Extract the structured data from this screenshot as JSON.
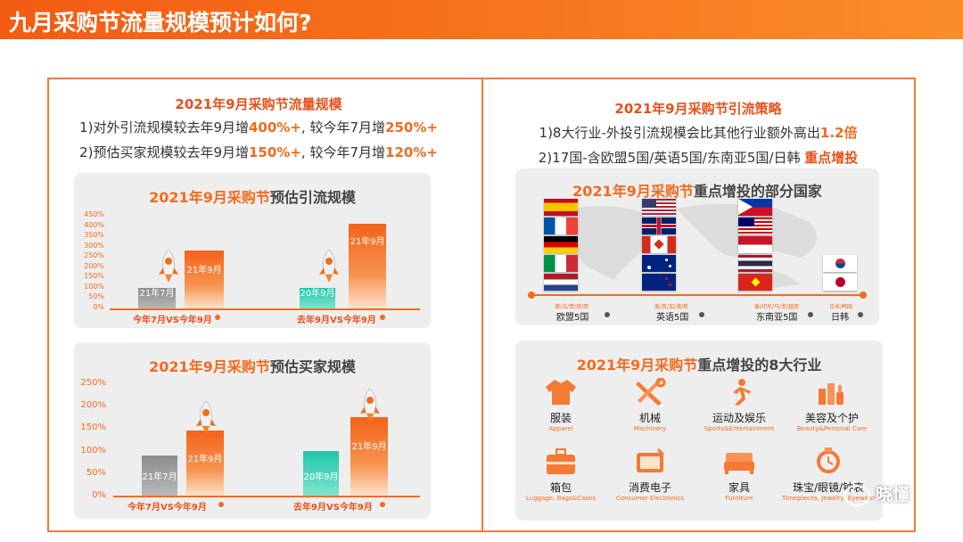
{
  "header": {
    "title": "九月采购节流量规模预计如何?"
  },
  "left": {
    "heading": "2021年9月采购节流量规模",
    "line1": {
      "a": "1)对外引流规模较去年9月增",
      "b": "400%+",
      "c": ", 较今年7月增",
      "d": "250%+"
    },
    "line2": {
      "a": "2)预估买家规模较去年9月增",
      "b": "150%+",
      "c": ", 较今年7月增",
      "d": "120%+"
    },
    "chart1": {
      "title_orange": "2021年9月采购节",
      "title_gray": "预估引流规模",
      "ticks": [
        "450%",
        "400%",
        "350%",
        "300%",
        "250%",
        "200%",
        "150%",
        "100%",
        "50%",
        "0%"
      ],
      "bar_labels": [
        "21年7月",
        "21年9月",
        "20年9月",
        "21年9月"
      ],
      "categories": [
        "今年7月VS今年9月",
        "去年9月VS今年9月"
      ]
    },
    "chart2": {
      "title_orange": "2021年9月采购节",
      "title_gray": "预估买家规模",
      "ticks": [
        "250%",
        "200%",
        "150%",
        "100%",
        "50%",
        "0%"
      ],
      "bar_labels": [
        "21年7月",
        "21年9月",
        "20年9月",
        "21年9月"
      ],
      "categories": [
        "今年7月VS今年9月",
        "去年9月VS今年9月"
      ]
    }
  },
  "chart_data": [
    {
      "type": "bar",
      "title": "2021年9月采购节预估引流规模",
      "ylim": [
        0,
        450
      ],
      "ticks": [
        "0%",
        "50%",
        "100%",
        "150%",
        "200%",
        "250%",
        "300%",
        "350%",
        "400%",
        "450%"
      ],
      "groups": [
        {
          "category": "今年7月VS今年9月",
          "bars": [
            {
              "label": "21年7月",
              "value": 100
            },
            {
              "label": "21年9月",
              "value": 280
            }
          ]
        },
        {
          "category": "去年9月VS今年9月",
          "bars": [
            {
              "label": "20年9月",
              "value": 100
            },
            {
              "label": "21年9月",
              "value": 410
            }
          ]
        }
      ]
    },
    {
      "type": "bar",
      "title": "2021年9月采购节预估买家规模",
      "ylim": [
        0,
        250
      ],
      "ticks": [
        "0%",
        "50%",
        "100%",
        "150%",
        "200%",
        "250%"
      ],
      "groups": [
        {
          "category": "今年7月VS今年9月",
          "bars": [
            {
              "label": "21年7月",
              "value": 90
            },
            {
              "label": "21年9月",
              "value": 145
            }
          ]
        },
        {
          "category": "去年9月VS今年9月",
          "bars": [
            {
              "label": "20年9月",
              "value": 100
            },
            {
              "label": "21年9月",
              "value": 175
            }
          ]
        }
      ]
    }
  ],
  "right": {
    "heading": "2021年9月采购节引流策略",
    "line1": {
      "a": "1)8大行业-外投引流规模会比其他行业额外高出",
      "b": "1.2倍"
    },
    "line2": {
      "a": "2)17国-含欧盟5国/英语5国/东南亚5国/日韩 ",
      "b": "重点增投"
    },
    "countries": {
      "title_orange": "2021年9月采购节",
      "title_gray": "重点增投的部分国家",
      "regions": [
        {
          "sub": "德/法/意/荷/西",
          "name": "欧盟5国"
        },
        {
          "sub": "美/英/加/澳/新",
          "name": "英语5国"
        },
        {
          "sub": "泰/印尼/马/菲/越南",
          "name": "东南亚5国"
        },
        {
          "sub": "日本/韩国",
          "name": "日韩"
        }
      ]
    },
    "industries": {
      "title_orange": "2021年9月采购节",
      "title_gray": "重点增投的8大行业",
      "items": [
        {
          "zh": "服装",
          "en": "Apparel"
        },
        {
          "zh": "机械",
          "en": "Machinery"
        },
        {
          "zh": "运动及娱乐",
          "en": "Sports&Entertainment"
        },
        {
          "zh": "美容及个护",
          "en": "Beauty&Personal Care"
        },
        {
          "zh": "箱包",
          "en": "Luggage, Bags&Cases"
        },
        {
          "zh": "消费电子",
          "en": "Consumer Electronics"
        },
        {
          "zh": "家具",
          "en": "Furniture"
        },
        {
          "zh": "珠宝/眼镜/钟表",
          "en": "Timepieces, Jewelry, Eyewear"
        }
      ]
    }
  },
  "watermark": {
    "text": "晓懂"
  },
  "colors": {
    "accent": "#f26b1d",
    "title_red": "#e8501a",
    "teal": "#1fc7a7",
    "panel": "#eeeeee"
  }
}
